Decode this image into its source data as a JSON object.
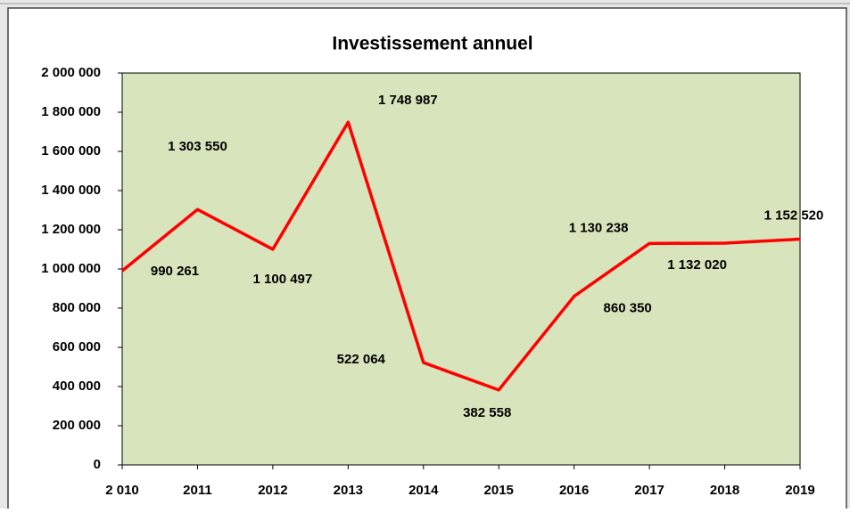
{
  "chart_data": {
    "type": "line",
    "title": "Investissement annuel",
    "categories": [
      "2 010",
      "2011",
      "2012",
      "2013",
      "2014",
      "2015",
      "2016",
      "2017",
      "2018",
      "2019"
    ],
    "series": [
      {
        "name": "Investissement",
        "color": "#ff0000",
        "values": [
          990261,
          1303550,
          1100497,
          1748987,
          522064,
          382558,
          860350,
          1130238,
          1132020,
          1152520
        ],
        "value_labels": [
          "990 261",
          "1 303 550",
          "1 100 497",
          "1 748 987",
          "522 064",
          "382 558",
          "860 350",
          "1 130 238",
          "1 132 020",
          "1 152 520"
        ]
      }
    ],
    "ylim": [
      0,
      2000000
    ],
    "yticks": [
      0,
      {
        "value": 200000,
        "label": "200 000"
      },
      {
        "value": 400000,
        "label": "400 000"
      },
      {
        "value": 600000,
        "label": "600 000"
      },
      {
        "value": 800000,
        "label": "800 000"
      },
      {
        "value": 1000000,
        "label": "1 000 000"
      },
      {
        "value": 1200000,
        "label": "1 200 000"
      },
      {
        "value": 1400000,
        "label": "1 400 000"
      },
      {
        "value": 1600000,
        "label": "1 600 000"
      },
      {
        "value": 1800000,
        "label": "1 800 000"
      },
      {
        "value": 2000000,
        "label": "2 000 000"
      }
    ],
    "plot_background": "#d7e4bc"
  }
}
